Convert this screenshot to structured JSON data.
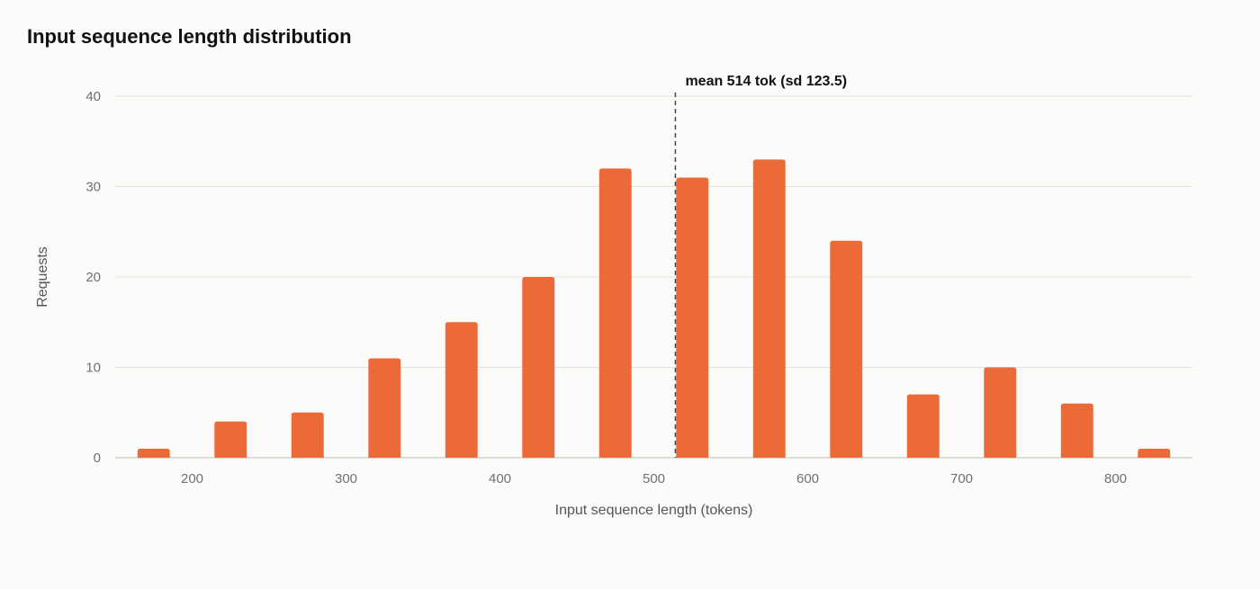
{
  "chart_data": {
    "type": "bar",
    "title": "Input sequence length distribution",
    "xlabel": "Input sequence length (tokens)",
    "ylabel": "Requests",
    "bin_centers": [
      175,
      225,
      275,
      325,
      375,
      425,
      475,
      525,
      575,
      625,
      675,
      725,
      775,
      825
    ],
    "values": [
      1,
      4,
      5,
      11,
      15,
      20,
      32,
      31,
      33,
      24,
      7,
      10,
      6,
      1
    ],
    "bin_width": 50,
    "xlim": [
      150,
      850
    ],
    "ylim": [
      0,
      40
    ],
    "x_ticks": [
      200,
      300,
      400,
      500,
      600,
      700,
      800
    ],
    "y_ticks": [
      0,
      10,
      20,
      30,
      40
    ],
    "grid": "horizontal",
    "colors": {
      "bar": "#ec6a37",
      "grid": "#e3e3dc",
      "axis": "#bdbdb6",
      "mean_line": "#444444"
    },
    "annotation": {
      "label": "mean 514 tok (sd 123.5)",
      "x": 514
    }
  }
}
